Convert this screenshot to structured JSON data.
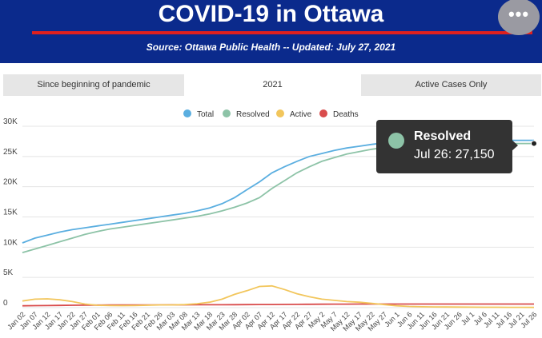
{
  "header": {
    "title": "COVID-19 in Ottawa",
    "subtitle": "Source:  Ottawa Public Health -- Updated:  July 27, 2021",
    "menu_label": "•••",
    "menu_icon": "more-horizontal-icon",
    "background": "#0b2a8c",
    "accent": "#e0201e"
  },
  "tabs": [
    {
      "label": "Since beginning of pandemic",
      "active": false
    },
    {
      "label": "2021",
      "active": true
    },
    {
      "label": "Active Cases Only",
      "active": false
    }
  ],
  "tooltip": {
    "series": "Resolved",
    "text": "Jul 26: 27,150",
    "color": "#8dc3a7"
  },
  "chart_data": {
    "type": "line",
    "grid": true,
    "legend_placement": "top-center",
    "ylim": [
      0,
      30000
    ],
    "y_ticks": [
      "0",
      "5K",
      "10K",
      "15K",
      "20K",
      "25K",
      "30K"
    ],
    "y_tick_values": [
      0,
      5000,
      10000,
      15000,
      20000,
      25000,
      30000
    ],
    "categories": [
      "Jan 02",
      "Jan 07",
      "Jan 12",
      "Jan 17",
      "Jan 22",
      "Jan 27",
      "Feb 01",
      "Feb 06",
      "Feb 11",
      "Feb 16",
      "Feb 21",
      "Feb 26",
      "Mar 03",
      "Mar 08",
      "Mar 13",
      "Mar 18",
      "Mar 23",
      "Mar 28",
      "Apr 02",
      "Apr 07",
      "Apr 12",
      "Apr 17",
      "Apr 22",
      "Apr 27",
      "May 2",
      "May 7",
      "May 12",
      "May 17",
      "May 22",
      "May 27",
      "Jun 1",
      "Jun 6",
      "Jun 11",
      "Jun 16",
      "Jun 21",
      "Jun 26",
      "Jul 1",
      "Jul 6",
      "Jul 11",
      "Jul 16",
      "Jul 21",
      "Jul 26"
    ],
    "series": [
      {
        "name": "Total",
        "color": "#5aaee0",
        "values": [
          10700,
          11500,
          12000,
          12500,
          12900,
          13200,
          13500,
          13800,
          14100,
          14400,
          14700,
          15000,
          15300,
          15600,
          16000,
          16500,
          17200,
          18200,
          19500,
          20800,
          22300,
          23300,
          24200,
          25000,
          25500,
          26000,
          26400,
          26700,
          27000,
          27250,
          27400,
          27500,
          27550,
          27580,
          27600,
          27620,
          27630,
          27640,
          27650,
          27660,
          27670,
          27680
        ]
      },
      {
        "name": "Resolved",
        "color": "#8dc3a7",
        "values": [
          9100,
          9700,
          10300,
          10900,
          11500,
          12100,
          12600,
          13000,
          13300,
          13600,
          13900,
          14200,
          14500,
          14800,
          15100,
          15500,
          16000,
          16600,
          17300,
          18200,
          19700,
          21000,
          22300,
          23300,
          24200,
          24800,
          25400,
          25800,
          26200,
          26500,
          26700,
          26850,
          26950,
          27000,
          27050,
          27080,
          27100,
          27110,
          27120,
          27130,
          27140,
          27150
        ]
      },
      {
        "name": "Active",
        "color": "#f2c65c",
        "values": [
          1100,
          1400,
          1450,
          1300,
          1000,
          600,
          400,
          350,
          330,
          350,
          400,
          450,
          450,
          500,
          650,
          900,
          1400,
          2200,
          2800,
          3500,
          3600,
          3000,
          2300,
          1800,
          1400,
          1200,
          1000,
          900,
          700,
          500,
          300,
          200,
          150,
          120,
          100,
          90,
          80,
          70,
          60,
          55,
          50,
          45
        ]
      },
      {
        "name": "Deaths",
        "color": "#d94c4c",
        "values": [
          300,
          330,
          350,
          370,
          390,
          410,
          420,
          430,
          440,
          445,
          450,
          455,
          460,
          465,
          470,
          475,
          480,
          490,
          500,
          510,
          520,
          530,
          540,
          560,
          570,
          580,
          585,
          590,
          592,
          594,
          595,
          596,
          597,
          597,
          598,
          598,
          598,
          599,
          599,
          599,
          599,
          599
        ]
      }
    ]
  }
}
